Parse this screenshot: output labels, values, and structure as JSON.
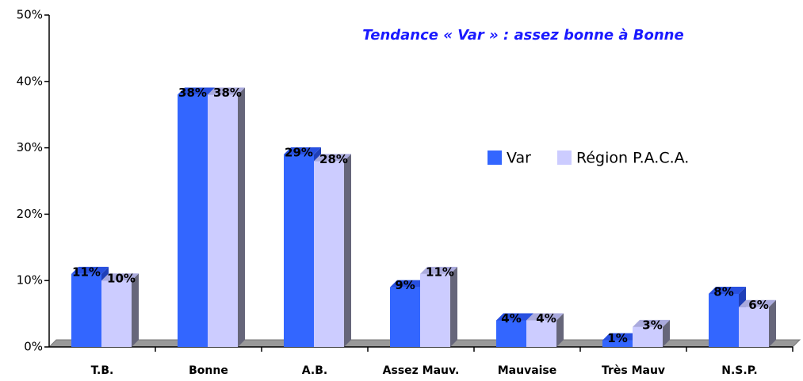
{
  "chart_data": {
    "type": "bar",
    "title": "Tendance « Var » : assez bonne à Bonne",
    "categories": [
      "T.B.",
      "Bonne",
      "A.B.",
      "Assez Mauv.",
      "Mauvaise",
      "Très Mauv",
      "N.S.P."
    ],
    "series": [
      {
        "name": "Var",
        "color": "#3366ff",
        "values": [
          11,
          38,
          29,
          9,
          4,
          1,
          8
        ],
        "value_labels": [
          "11%",
          "38%",
          "29%",
          "9%",
          "4%",
          "1%",
          "8%"
        ]
      },
      {
        "name": "Région P.A.C.A.",
        "color": "#ccccff",
        "values": [
          10,
          38,
          28,
          11,
          4,
          3,
          6
        ],
        "value_labels": [
          "10%",
          "38%",
          "28%",
          "11%",
          "4%",
          "3%",
          "6%"
        ]
      }
    ],
    "ylim": [
      0,
      50
    ],
    "yticks": [
      {
        "value": 0,
        "label": "0%"
      },
      {
        "value": 10,
        "label": "10%"
      },
      {
        "value": 20,
        "label": "20%"
      },
      {
        "value": 30,
        "label": "30%"
      },
      {
        "value": 40,
        "label": "40%"
      },
      {
        "value": 50,
        "label": "50%"
      }
    ],
    "legend": "right"
  }
}
